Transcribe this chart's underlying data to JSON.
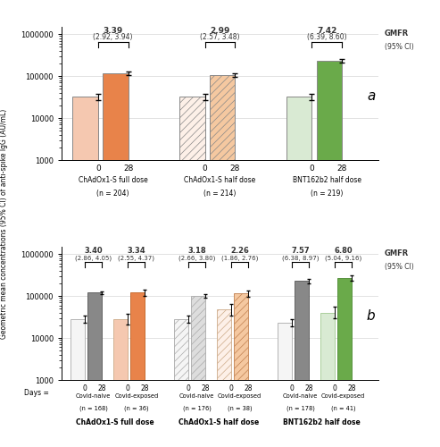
{
  "panel_a": {
    "groups": [
      {
        "label": "ChAdOx1-S full dose",
        "n": "(n = 204)",
        "bars": [
          {
            "day": "0",
            "gm": 32000,
            "ci_low": 27000,
            "ci_high": 38000,
            "color": "#f5c8b0",
            "hatch": null
          },
          {
            "day": "28",
            "gm": 115000,
            "ci_low": 105000,
            "ci_high": 126000,
            "color": "#e8834a",
            "hatch": null
          }
        ],
        "gmfr": "3.39",
        "gmfr_ci": "(2.92, 3.94)"
      },
      {
        "label": "ChAdOx1-S half dose",
        "n": "(n = 214)",
        "bars": [
          {
            "day": "0",
            "gm": 32000,
            "ci_low": 27000,
            "ci_high": 38000,
            "color": "#fdf0e8",
            "hatch": "////"
          },
          {
            "day": "28",
            "gm": 105000,
            "ci_low": 96000,
            "ci_high": 115000,
            "color": "#f5c8a0",
            "hatch": "////"
          }
        ],
        "gmfr": "2.99",
        "gmfr_ci": "(2.57, 3.48)"
      },
      {
        "label": "BNT162b2 half dose",
        "n": "(n = 219)",
        "bars": [
          {
            "day": "0",
            "gm": 32000,
            "ci_low": 27000,
            "ci_high": 38000,
            "color": "#d9ead3",
            "hatch": null
          },
          {
            "day": "28",
            "gm": 230000,
            "ci_low": 210000,
            "ci_high": 252000,
            "color": "#6aaa4a",
            "hatch": null
          }
        ],
        "gmfr": "7.42",
        "gmfr_ci": "(6.39, 8.60)"
      }
    ]
  },
  "panel_b": {
    "groups": [
      {
        "label": "ChAdOx1-S full dose",
        "subgroups": [
          {
            "sublabel": "Covid-naive",
            "n": "(n = 168)",
            "bars": [
              {
                "day": "0",
                "gm": 28000,
                "ci_low": 23000,
                "ci_high": 34000,
                "color": "#f5f5f5",
                "hatch": null,
                "edgecolor": "#aaaaaa"
              },
              {
                "day": "28",
                "gm": 120000,
                "ci_low": 110000,
                "ci_high": 131000,
                "color": "#888888",
                "hatch": null,
                "edgecolor": "#555555"
              }
            ],
            "gmfr": "3.40",
            "gmfr_ci": "(2.86, 4.05)"
          },
          {
            "sublabel": "Covid-exposed",
            "n": "(n = 36)",
            "bars": [
              {
                "day": "0",
                "gm": 28000,
                "ci_low": 21000,
                "ci_high": 37000,
                "color": "#f5c8b0",
                "hatch": null,
                "edgecolor": "#ccaa88"
              },
              {
                "day": "28",
                "gm": 120000,
                "ci_low": 100000,
                "ci_high": 143000,
                "color": "#e8834a",
                "hatch": null,
                "edgecolor": "#c06020"
              }
            ],
            "gmfr": "3.34",
            "gmfr_ci": "(2.55, 4.37)"
          }
        ]
      },
      {
        "label": "ChAdOx1-S half dose",
        "subgroups": [
          {
            "sublabel": "Covid-naive",
            "n": "(n = 176)",
            "bars": [
              {
                "day": "0",
                "gm": 28000,
                "ci_low": 23000,
                "ci_high": 34000,
                "color": "#f5f5f5",
                "hatch": "////",
                "edgecolor": "#aaaaaa"
              },
              {
                "day": "28",
                "gm": 100000,
                "ci_low": 91000,
                "ci_high": 110000,
                "color": "#dddddd",
                "hatch": "////",
                "edgecolor": "#aaaaaa"
              }
            ],
            "gmfr": "3.18",
            "gmfr_ci": "(2.66, 3.80)"
          },
          {
            "sublabel": "Covid-exposed",
            "n": "(n = 38)",
            "bars": [
              {
                "day": "0",
                "gm": 48000,
                "ci_low": 35000,
                "ci_high": 65000,
                "color": "#fdf0e8",
                "hatch": "////",
                "edgecolor": "#ccaa88"
              },
              {
                "day": "28",
                "gm": 115000,
                "ci_low": 96000,
                "ci_high": 138000,
                "color": "#f5c8a0",
                "hatch": "////",
                "edgecolor": "#c08050"
              }
            ],
            "gmfr": "2.26",
            "gmfr_ci": "(1.86, 2.76)"
          }
        ]
      },
      {
        "label": "BNT162b2 half dose",
        "subgroups": [
          {
            "sublabel": "Covid-naive",
            "n": "(n = 178)",
            "bars": [
              {
                "day": "0",
                "gm": 23000,
                "ci_low": 19000,
                "ci_high": 28000,
                "color": "#f5f5f5",
                "hatch": null,
                "edgecolor": "#aaaaaa"
              },
              {
                "day": "28",
                "gm": 230000,
                "ci_low": 205000,
                "ci_high": 258000,
                "color": "#888888",
                "hatch": null,
                "edgecolor": "#555555"
              }
            ],
            "gmfr": "7.57",
            "gmfr_ci": "(6.38, 8.97)"
          },
          {
            "sublabel": "Covid-exposed",
            "n": "(n = 41)",
            "bars": [
              {
                "day": "0",
                "gm": 40000,
                "ci_low": 29000,
                "ci_high": 55000,
                "color": "#d9ead3",
                "hatch": null,
                "edgecolor": "#a0c890"
              },
              {
                "day": "28",
                "gm": 270000,
                "ci_low": 230000,
                "ci_high": 317000,
                "color": "#6aaa4a",
                "hatch": null,
                "edgecolor": "#4a8830"
              }
            ],
            "gmfr": "6.80",
            "gmfr_ci": "(5.04, 9.16)"
          }
        ]
      }
    ]
  },
  "ylim": [
    1000,
    1500000
  ],
  "ylabel": "Geometric mean concentrations (95% CI) of anti-spike IgG (AU/mL)",
  "background_color": "#ffffff"
}
